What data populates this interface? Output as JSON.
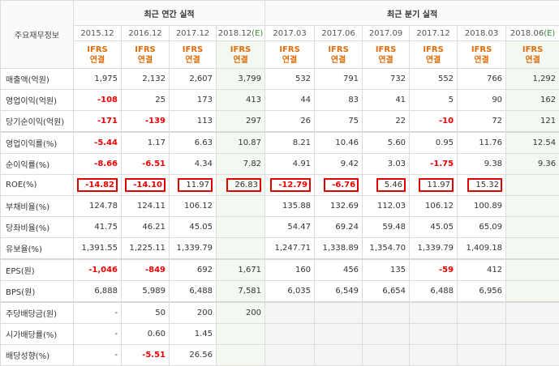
{
  "header": {
    "row_label": "주요재무정보",
    "annual_group": "최근 연간 실적",
    "quarter_group": "최근 분기 실적",
    "ifrs_line1": "IFRS",
    "ifrs_line2": "연결"
  },
  "columns": [
    "2015.12",
    "2016.12",
    "2017.12",
    "2018.12(E)",
    "2017.03",
    "2017.06",
    "2017.09",
    "2017.12",
    "2018.03",
    "2018.06(E)"
  ],
  "rows": [
    {
      "label": "매출액(억원)",
      "values": [
        "1,975",
        "2,132",
        "2,607",
        "3,799",
        "532",
        "791",
        "732",
        "552",
        "766",
        "1,292"
      ]
    },
    {
      "label": "영업이익(억원)",
      "values": [
        "-108",
        "25",
        "173",
        "413",
        "44",
        "83",
        "41",
        "5",
        "90",
        "162"
      ]
    },
    {
      "label": "당기순이익(억원)",
      "values": [
        "-171",
        "-139",
        "113",
        "297",
        "26",
        "75",
        "22",
        "-10",
        "72",
        "121"
      ]
    },
    {
      "label": "영업이익률(%)",
      "values": [
        "-5.44",
        "1.17",
        "6.63",
        "10.87",
        "8.21",
        "10.46",
        "5.60",
        "0.95",
        "11.76",
        "12.54"
      ]
    },
    {
      "label": "순이익률(%)",
      "values": [
        "-8.66",
        "-6.51",
        "4.34",
        "7.82",
        "4.91",
        "9.42",
        "3.03",
        "-1.75",
        "9.38",
        "9.36"
      ]
    },
    {
      "label": "ROE(%)",
      "values": [
        "-14.82",
        "-14.10",
        "11.97",
        "26.83",
        "-12.79",
        "-6.76",
        "5.46",
        "11.97",
        "15.32",
        ""
      ]
    },
    {
      "label": "부채비율(%)",
      "values": [
        "124.78",
        "124.11",
        "106.12",
        "",
        "135.88",
        "132.69",
        "112.03",
        "106.12",
        "100.89",
        ""
      ]
    },
    {
      "label": "당좌비율(%)",
      "values": [
        "41.75",
        "46.21",
        "45.05",
        "",
        "54.47",
        "69.24",
        "59.48",
        "45.05",
        "65.09",
        ""
      ]
    },
    {
      "label": "유보율(%)",
      "values": [
        "1,391.55",
        "1,225.11",
        "1,339.79",
        "",
        "1,247.71",
        "1,338.89",
        "1,354.70",
        "1,339.79",
        "1,409.18",
        ""
      ]
    },
    {
      "label": "EPS(원)",
      "values": [
        "-1,046",
        "-849",
        "692",
        "1,671",
        "160",
        "456",
        "135",
        "-59",
        "412",
        ""
      ]
    },
    {
      "label": "BPS(원)",
      "values": [
        "6,888",
        "5,989",
        "6,488",
        "7,581",
        "6,035",
        "6,549",
        "6,654",
        "6,488",
        "6,956",
        ""
      ]
    },
    {
      "label": "주당배당금(원)",
      "values": [
        "-",
        "50",
        "200",
        "200",
        "",
        "",
        "",
        "",
        "",
        ""
      ]
    },
    {
      "label": "시가배당률(%)",
      "values": [
        "-",
        "0.60",
        "1.45",
        "",
        "",
        "",
        "",
        "",
        "",
        ""
      ]
    },
    {
      "label": "배당성향(%)",
      "values": [
        "-",
        "-5.51",
        "26.56",
        "",
        "",
        "",
        "",
        "",
        "",
        ""
      ]
    }
  ]
}
